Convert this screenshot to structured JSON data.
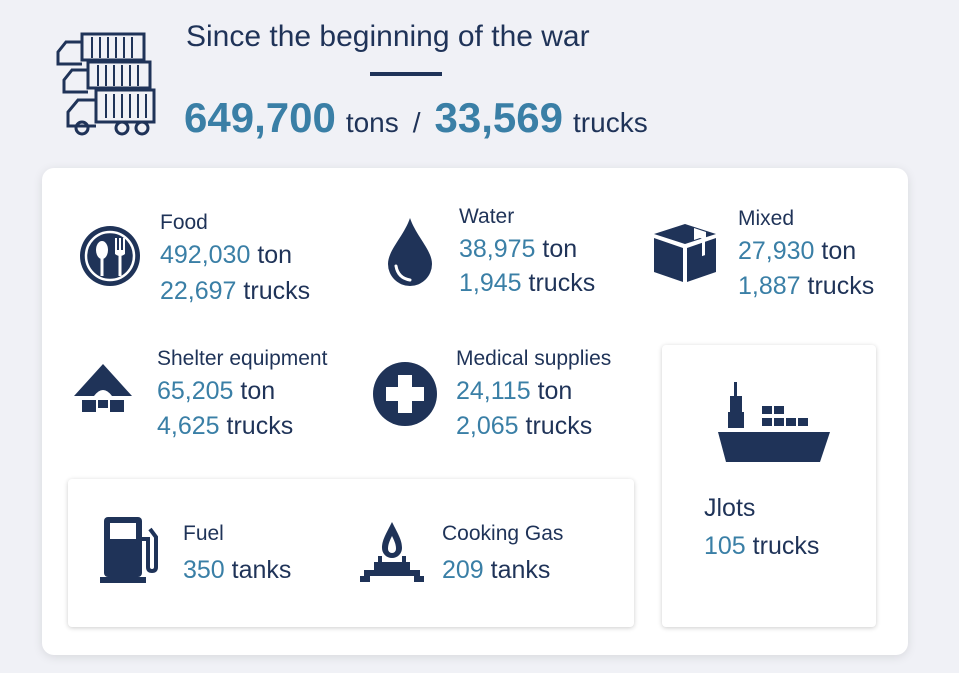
{
  "header": {
    "title": "Since the beginning of the war",
    "tons_value": "649,700",
    "tons_unit": "tons",
    "separator": "/",
    "trucks_value": "33,569",
    "trucks_unit": "trucks",
    "icon": "container-trucks-icon"
  },
  "colors": {
    "navy": "#1f3358",
    "accent_blue": "#3a7fa6",
    "background": "#f0f1f6",
    "card": "#ffffff"
  },
  "categories": {
    "food": {
      "title": "Food",
      "tons": "492,030",
      "tons_unit": "ton",
      "trucks": "22,697",
      "trucks_unit": "trucks",
      "icon": "plate-utensils-icon"
    },
    "water": {
      "title": "Water",
      "tons": "38,975",
      "tons_unit": "ton",
      "trucks": "1,945",
      "trucks_unit": "trucks",
      "icon": "water-drop-icon"
    },
    "mixed": {
      "title": "Mixed",
      "tons": "27,930",
      "tons_unit": "ton",
      "trucks": "1,887",
      "trucks_unit": "trucks",
      "icon": "box-icon"
    },
    "shelter": {
      "title": "Shelter equipment",
      "tons": "65,205",
      "tons_unit": "ton",
      "trucks": "4,625",
      "trucks_unit": "trucks",
      "icon": "tent-icon"
    },
    "medical": {
      "title": "Medical supplies",
      "tons": "24,115",
      "tons_unit": "ton",
      "trucks": "2,065",
      "trucks_unit": "trucks",
      "icon": "medical-cross-icon"
    }
  },
  "tanks": {
    "fuel": {
      "title": "Fuel",
      "value": "350",
      "unit": "tanks",
      "icon": "fuel-pump-icon"
    },
    "cooking_gas": {
      "title": "Cooking Gas",
      "value": "209",
      "unit": "tanks",
      "icon": "gas-burner-icon"
    }
  },
  "jlots": {
    "title": "Jlots",
    "value": "105",
    "unit": "trucks",
    "icon": "cargo-ship-icon"
  }
}
